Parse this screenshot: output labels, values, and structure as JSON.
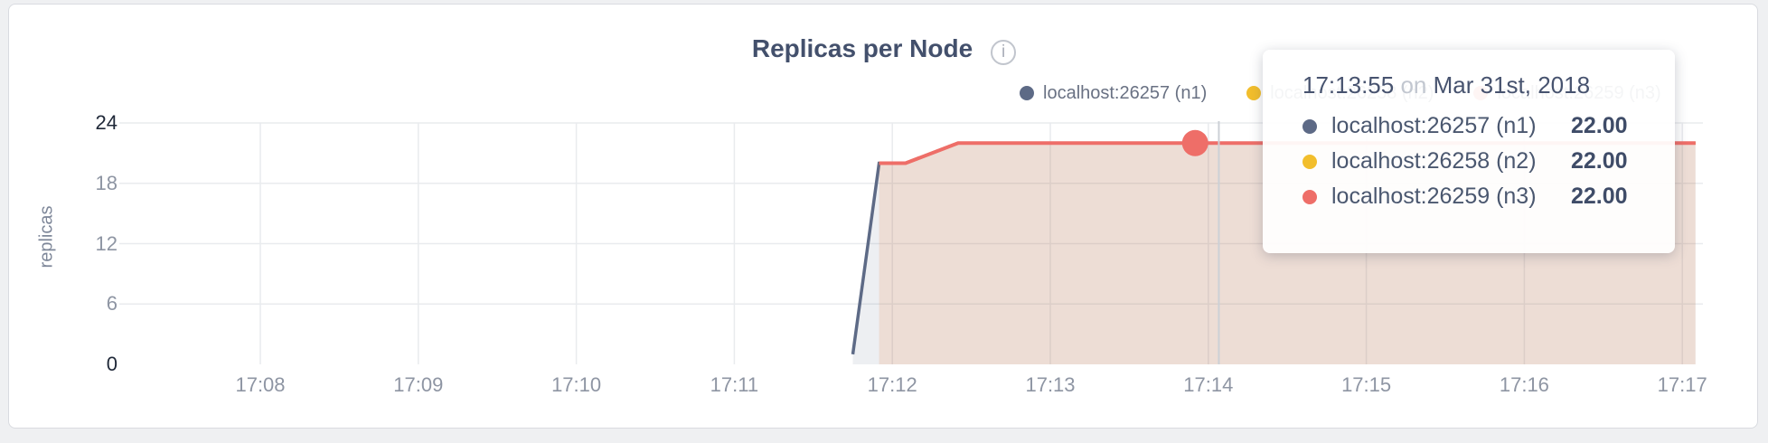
{
  "page": {
    "background": "#eff0f2",
    "card_background": "#ffffff",
    "card_border": "#d9dbe0"
  },
  "header": {
    "title": "Replicas per Node",
    "info_icon": "i"
  },
  "chart_data": {
    "type": "area",
    "title": "Replicas per Node",
    "ylabel": "replicas",
    "xlabel": "",
    "ylim": [
      0,
      24
    ],
    "y_ticks": [
      0,
      6,
      12,
      18,
      24
    ],
    "y_ticks_emphasized": [
      0,
      24
    ],
    "x_ticks": [
      "17:08",
      "17:09",
      "17:10",
      "17:11",
      "17:12",
      "17:13",
      "17:14",
      "17:15",
      "17:16",
      "17:17"
    ],
    "grid": true,
    "legend_position": "top-right",
    "series": [
      {
        "name": "localhost:26257 (n1)",
        "color": "#5d6a86",
        "points": [
          [
            "17:11:45",
            1
          ],
          [
            "17:11:55",
            20
          ],
          [
            "17:12:05",
            20
          ],
          [
            "17:12:25",
            22
          ],
          [
            "17:17:05",
            22
          ]
        ]
      },
      {
        "name": "localhost:26258 (n2)",
        "color": "#f2be2c",
        "points": [
          [
            "17:11:55",
            20
          ],
          [
            "17:12:05",
            20
          ],
          [
            "17:12:25",
            22
          ],
          [
            "17:17:05",
            22
          ]
        ]
      },
      {
        "name": "localhost:26259 (n3)",
        "color": "#ee6e68",
        "points": [
          [
            "17:11:55",
            20
          ],
          [
            "17:12:05",
            20
          ],
          [
            "17:12:25",
            22
          ],
          [
            "17:17:05",
            22
          ]
        ]
      }
    ],
    "hover": {
      "point_series": "localhost:26259 (n3)",
      "point_time": "17:13:55",
      "point_value": 22,
      "guide_time": "17:14:04"
    }
  },
  "tooltip": {
    "time": "17:13:55",
    "connector": "on",
    "date": "Mar 31st, 2018",
    "rows": [
      {
        "label": "localhost:26257 (n1)",
        "value": "22.00",
        "color": "#5d6a86"
      },
      {
        "label": "localhost:26258 (n2)",
        "value": "22.00",
        "color": "#f2be2c"
      },
      {
        "label": "localhost:26259 (n3)",
        "value": "22.00",
        "color": "#ee6e68"
      }
    ]
  }
}
